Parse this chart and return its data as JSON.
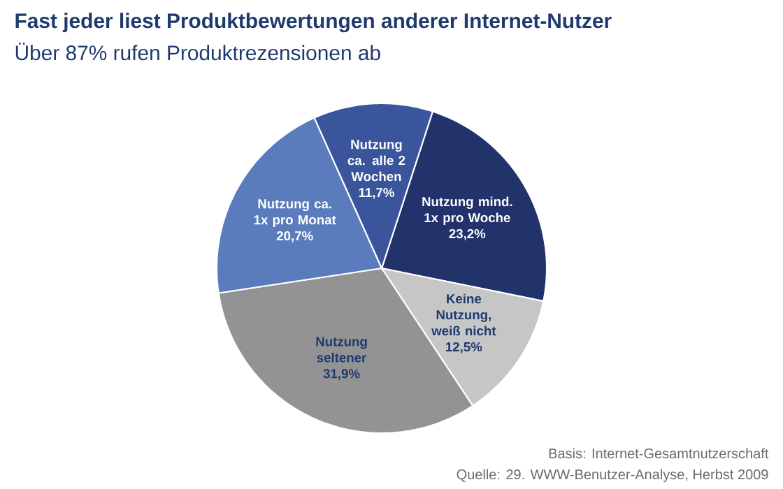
{
  "chart_data": {
    "type": "pie",
    "title": "Fast jeder liest Produktbewertungen anderer Internet-Nutzer",
    "subtitle": "Über 87% rufen Produktrezensionen ab",
    "categories": [
      "Nutzung mind. 1x pro Woche",
      "Keine Nutzung, weiß nicht",
      "Nutzung seltener",
      "Nutzung ca. 1x pro Monat",
      "Nutzung ca. alle 2 Wochen"
    ],
    "values": [
      23.2,
      12.5,
      31.9,
      20.7,
      11.7
    ],
    "value_labels": [
      "23,2%",
      "12,5%",
      "31,9%",
      "20,7%",
      "11,7%"
    ],
    "colors": [
      "#22336b",
      "#c6c6c6",
      "#939393",
      "#5a7cbc",
      "#3a559c"
    ],
    "annotations": [
      "Basis: Internet-Gesamtnutzerschaft",
      "Quelle: 29. WWW-Benutzer-Analyse, Herbst 2009"
    ]
  }
}
